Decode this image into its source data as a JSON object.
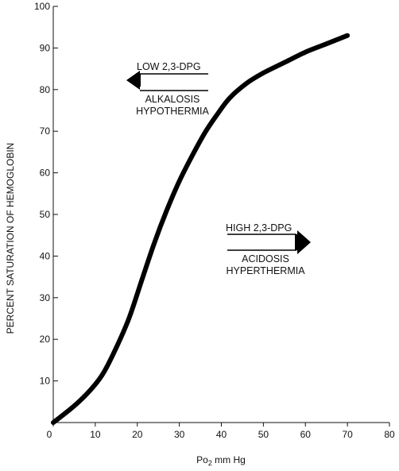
{
  "chart_data": {
    "type": "line",
    "title": "",
    "xlabel": {
      "main": "Po",
      "sub": "2",
      "rest": " mm Hg"
    },
    "ylabel": "PERCENT SATURATION OF HEMOGLOBIN",
    "xlim": [
      0,
      80
    ],
    "ylim": [
      0,
      100
    ],
    "x_ticks": [
      0,
      10,
      20,
      30,
      40,
      50,
      60,
      70,
      80
    ],
    "y_ticks": [
      10,
      20,
      30,
      40,
      50,
      60,
      70,
      80,
      90,
      100
    ],
    "grid": false,
    "series": [
      {
        "x": [
          0,
          5,
          9,
          12,
          15,
          18,
          21,
          24,
          27,
          30,
          33,
          36,
          39,
          42,
          46,
          50,
          55,
          60,
          65,
          70
        ],
        "y": [
          0,
          4,
          8,
          12,
          18,
          25,
          34,
          43,
          51,
          58,
          64,
          69.5,
          74,
          78,
          81.5,
          84,
          86.5,
          89,
          91,
          93
        ]
      }
    ],
    "annotations": [
      {
        "direction": "left",
        "above": "LOW 2,3-DPG",
        "below": [
          "ALKALOSIS",
          "HYPOTHERMIA"
        ]
      },
      {
        "direction": "right",
        "above": "HIGH 2,3-DPG",
        "below": [
          "ACIDOSIS",
          "HYPERTHERMIA"
        ]
      }
    ]
  }
}
